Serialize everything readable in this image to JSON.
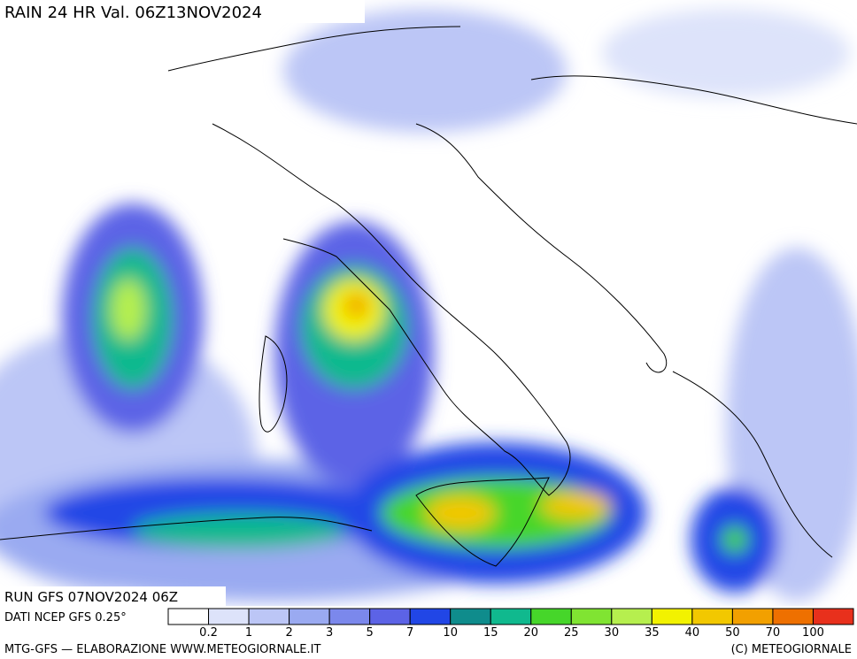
{
  "header": {
    "title": "RAIN 24 HR Val. 06Z13NOV2024"
  },
  "run_info": {
    "run": "RUN GFS 07NOV2024 06Z",
    "source": "DATI NCEP GFS 0.25°"
  },
  "legend": {
    "thresholds": [
      0.2,
      1,
      2,
      3,
      5,
      7,
      10,
      15,
      20,
      25,
      30,
      35,
      40,
      50,
      70,
      100
    ],
    "colors": [
      "#ffffff",
      "#dde3fa",
      "#bcc6f6",
      "#9aaaf1",
      "#7b88ec",
      "#5c63e6",
      "#2146e6",
      "#0f8c8c",
      "#10b98e",
      "#46d62a",
      "#80e432",
      "#b6ef4e",
      "#f2f200",
      "#f2c800",
      "#f2a000",
      "#ee7000",
      "#e8301c"
    ]
  },
  "footer": {
    "credits": "MTG-GFS — ELABORAZIONE WWW.METEOGIORNALE.IT",
    "copyright": "(C) METEOGIORNALE"
  }
}
